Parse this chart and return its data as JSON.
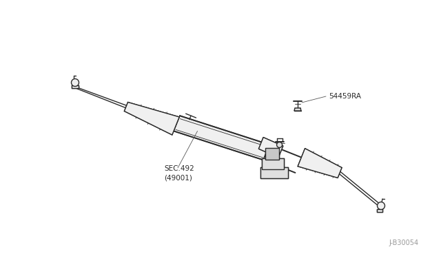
{
  "bg_color": "#ffffff",
  "line_color": "#2a2a2a",
  "fill_light": "#f0f0f0",
  "fill_mid": "#e0e0e0",
  "fill_dark": "#c8c8c8",
  "label_color": "#2a2a2a",
  "fig_width": 6.4,
  "fig_height": 3.72,
  "part_label_1": "54459RA",
  "part_label_2": "SEC.492\n(49001)",
  "diagram_id": "J-B30054",
  "lw_main": 1.0,
  "lw_thin": 0.6,
  "lw_thick": 1.4
}
